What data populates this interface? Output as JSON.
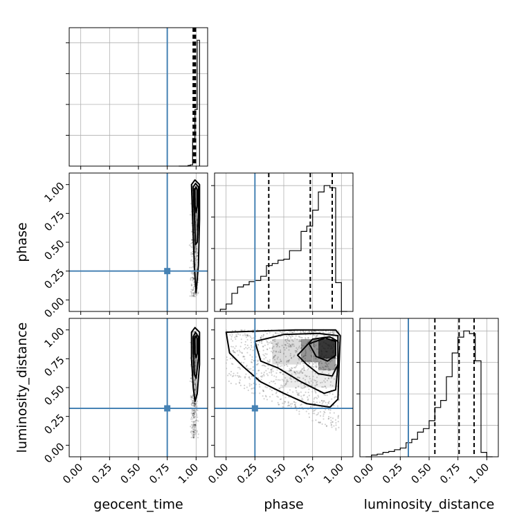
{
  "chart_data": {
    "type": "corner",
    "parameters": [
      "geocent_time",
      "phase",
      "luminosity_distance"
    ],
    "axis_labels": {
      "x": [
        "geocent_time",
        "phase",
        "luminosity_distance"
      ],
      "y": [
        "phase",
        "luminosity_distance"
      ]
    },
    "tick_values": [
      0.0,
      0.25,
      0.5,
      0.75,
      1.0
    ],
    "tick_labels": [
      "0.00",
      "0.25",
      "0.50",
      "0.75",
      "1.00"
    ],
    "axis_range": [
      -0.1,
      1.1
    ],
    "truths": {
      "geocent_time": 0.75,
      "phase": 0.25,
      "luminosity_distance": 0.32
    },
    "truth_color": "#4682b4",
    "grid": true,
    "marginals": [
      {
        "name": "geocent_time",
        "bin_edges": [
          0.85,
          0.87,
          0.89,
          0.91,
          0.93,
          0.95,
          0.97,
          0.99,
          1.01,
          1.03
        ],
        "counts": [
          0.0,
          0.0,
          0.0,
          0.0,
          0.005,
          0.01,
          0.22,
          0.45,
          1.0
        ],
        "quantiles": [
          0.975,
          0.985,
          0.995
        ]
      },
      {
        "name": "phase",
        "bin_edges": [
          -0.05,
          0.0,
          0.05,
          0.1,
          0.15,
          0.2,
          0.25,
          0.3,
          0.35,
          0.4,
          0.45,
          0.5,
          0.55,
          0.6,
          0.65,
          0.7,
          0.75,
          0.8,
          0.85,
          0.9,
          0.95,
          1.0,
          1.05
        ],
        "counts": [
          0.02,
          0.07,
          0.17,
          0.23,
          0.25,
          0.28,
          0.29,
          0.33,
          0.43,
          0.45,
          0.48,
          0.49,
          0.57,
          0.57,
          0.75,
          0.8,
          0.95,
          1.12,
          1.18,
          1.16,
          0.27,
          0.0
        ],
        "quantiles": [
          0.37,
          0.73,
          0.92
        ]
      },
      {
        "name": "luminosity_distance",
        "bin_edges": [
          -0.05,
          0.0,
          0.05,
          0.1,
          0.15,
          0.2,
          0.25,
          0.3,
          0.35,
          0.4,
          0.45,
          0.5,
          0.55,
          0.6,
          0.65,
          0.7,
          0.75,
          0.8,
          0.85,
          0.9,
          0.95,
          1.0,
          1.05
        ],
        "counts": [
          0.0,
          0.02,
          0.03,
          0.05,
          0.06,
          0.08,
          0.1,
          0.16,
          0.2,
          0.28,
          0.32,
          0.41,
          0.56,
          0.64,
          0.91,
          1.18,
          1.36,
          1.43,
          1.4,
          1.09,
          0.05,
          0.0
        ],
        "quantiles": [
          0.55,
          0.76,
          0.89
        ]
      }
    ],
    "joint_panels": [
      {
        "x": "geocent_time",
        "y": "phase",
        "density_cells": [
          {
            "x0": 0.97,
            "x1": 1.01,
            "y0": 0.8,
            "y1": 0.97,
            "level": 0.85
          },
          {
            "x0": 0.97,
            "x1": 1.01,
            "y0": 0.6,
            "y1": 0.8,
            "level": 0.55
          },
          {
            "x0": 0.98,
            "x1": 1.01,
            "y0": 0.4,
            "y1": 0.6,
            "level": 0.3
          },
          {
            "x0": 0.98,
            "x1": 1.01,
            "y0": 0.15,
            "y1": 0.4,
            "level": 0.12
          }
        ],
        "contours": [
          [
            [
              0.96,
              1.0
            ],
            [
              0.99,
              1.04
            ],
            [
              1.03,
              1.0
            ],
            [
              1.03,
              0.7
            ],
            [
              1.02,
              0.3
            ],
            [
              1.0,
              0.06
            ],
            [
              0.985,
              0.3
            ],
            [
              0.97,
              0.7
            ],
            [
              0.96,
              1.0
            ]
          ],
          [
            [
              0.975,
              0.98
            ],
            [
              0.995,
              1.01
            ],
            [
              1.02,
              0.98
            ],
            [
              1.02,
              0.75
            ],
            [
              1.01,
              0.5
            ],
            [
              0.995,
              0.48
            ],
            [
              0.985,
              0.75
            ],
            [
              0.975,
              0.98
            ]
          ],
          [
            [
              0.985,
              0.95
            ],
            [
              1.0,
              0.98
            ],
            [
              1.01,
              0.95
            ],
            [
              1.01,
              0.82
            ],
            [
              1.0,
              0.76
            ],
            [
              0.99,
              0.82
            ],
            [
              0.985,
              0.95
            ]
          ]
        ]
      },
      {
        "x": "geocent_time",
        "y": "luminosity_distance",
        "density_cells": [
          {
            "x0": 0.97,
            "x1": 1.01,
            "y0": 0.78,
            "y1": 0.95,
            "level": 0.85
          },
          {
            "x0": 0.97,
            "x1": 1.01,
            "y0": 0.6,
            "y1": 0.78,
            "level": 0.5
          },
          {
            "x0": 0.98,
            "x1": 1.01,
            "y0": 0.4,
            "y1": 0.6,
            "level": 0.25
          }
        ],
        "contours": [
          [
            [
              0.96,
              0.98
            ],
            [
              0.99,
              1.02
            ],
            [
              1.03,
              0.98
            ],
            [
              1.03,
              0.7
            ],
            [
              1.01,
              0.45
            ],
            [
              0.99,
              0.38
            ],
            [
              0.975,
              0.5
            ],
            [
              0.96,
              0.75
            ],
            [
              0.96,
              0.98
            ]
          ],
          [
            [
              0.975,
              0.94
            ],
            [
              0.995,
              0.98
            ],
            [
              1.02,
              0.94
            ],
            [
              1.02,
              0.75
            ],
            [
              1.0,
              0.58
            ],
            [
              0.985,
              0.62
            ],
            [
              0.975,
              0.8
            ],
            [
              0.975,
              0.94
            ]
          ],
          [
            [
              0.985,
              0.92
            ],
            [
              1.0,
              0.95
            ],
            [
              1.01,
              0.92
            ],
            [
              1.01,
              0.8
            ],
            [
              1.0,
              0.76
            ],
            [
              0.99,
              0.8
            ],
            [
              0.985,
              0.92
            ]
          ]
        ]
      },
      {
        "x": "phase",
        "y": "luminosity_distance",
        "density_cells": [
          {
            "x0": 0.8,
            "x1": 0.95,
            "y0": 0.75,
            "y1": 0.92,
            "level": 0.85
          },
          {
            "x0": 0.65,
            "x1": 0.8,
            "y0": 0.72,
            "y1": 0.92,
            "level": 0.45
          },
          {
            "x0": 0.8,
            "x1": 0.95,
            "y0": 0.6,
            "y1": 0.75,
            "level": 0.4
          },
          {
            "x0": 0.4,
            "x1": 0.65,
            "y0": 0.7,
            "y1": 0.92,
            "level": 0.15
          },
          {
            "x0": 0.5,
            "x1": 0.95,
            "y0": 0.5,
            "y1": 0.65,
            "level": 0.08
          }
        ],
        "contours": [
          [
            [
              0.0,
              0.98
            ],
            [
              0.3,
              0.99
            ],
            [
              0.6,
              1.0
            ],
            [
              0.95,
              1.0
            ],
            [
              0.99,
              0.95
            ],
            [
              0.98,
              0.7
            ],
            [
              0.97,
              0.4
            ],
            [
              0.9,
              0.33
            ],
            [
              0.7,
              0.36
            ],
            [
              0.5,
              0.45
            ],
            [
              0.3,
              0.55
            ],
            [
              0.15,
              0.68
            ],
            [
              0.03,
              0.8
            ],
            [
              0.0,
              0.98
            ]
          ],
          [
            [
              0.25,
              0.9
            ],
            [
              0.5,
              0.96
            ],
            [
              0.8,
              0.97
            ],
            [
              0.97,
              0.95
            ],
            [
              0.97,
              0.7
            ],
            [
              0.95,
              0.48
            ],
            [
              0.85,
              0.45
            ],
            [
              0.65,
              0.55
            ],
            [
              0.45,
              0.67
            ],
            [
              0.3,
              0.73
            ],
            [
              0.25,
              0.9
            ]
          ],
          [
            [
              0.62,
              0.78
            ],
            [
              0.75,
              0.92
            ],
            [
              0.9,
              0.94
            ],
            [
              0.97,
              0.9
            ],
            [
              0.97,
              0.7
            ],
            [
              0.92,
              0.6
            ],
            [
              0.8,
              0.62
            ],
            [
              0.7,
              0.7
            ],
            [
              0.62,
              0.78
            ]
          ],
          [
            [
              0.72,
              0.88
            ],
            [
              0.86,
              0.93
            ],
            [
              0.95,
              0.9
            ],
            [
              0.95,
              0.78
            ],
            [
              0.88,
              0.73
            ],
            [
              0.78,
              0.77
            ],
            [
              0.72,
              0.88
            ]
          ]
        ]
      }
    ]
  }
}
